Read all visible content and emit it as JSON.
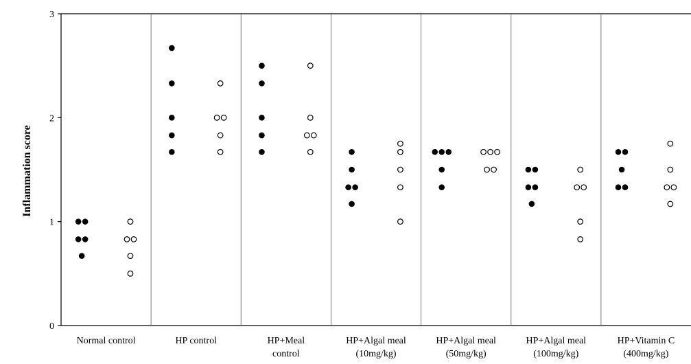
{
  "chart_data": {
    "type": "scatter",
    "ylabel": "Inflammation score",
    "xlabel": "",
    "ylim": [
      0,
      3
    ],
    "yticks": [
      "0",
      "1",
      "2",
      "3"
    ],
    "categories": [
      [
        "Normal control"
      ],
      [
        "HP control"
      ],
      [
        "HP+Meal",
        "control"
      ],
      [
        "HP+Algal meal",
        "(10mg/kg)"
      ],
      [
        "HP+Algal meal",
        "(50mg/kg)"
      ],
      [
        "HP+Algal meal",
        "(100mg/kg)"
      ],
      [
        "HP+Vitamin C",
        "(400mg/kg)"
      ]
    ],
    "series": [
      {
        "marker": "filled",
        "color": "#000000",
        "groups": [
          [
            1.0,
            1.0,
            0.83,
            0.83,
            0.67
          ],
          [
            2.67,
            2.33,
            2.0,
            1.83,
            1.67
          ],
          [
            2.5,
            2.33,
            2.0,
            1.83,
            1.67
          ],
          [
            1.67,
            1.5,
            1.33,
            1.33,
            1.17
          ],
          [
            1.67,
            1.67,
            1.67,
            1.5,
            1.33
          ],
          [
            1.5,
            1.5,
            1.33,
            1.33,
            1.17
          ],
          [
            1.67,
            1.67,
            1.5,
            1.33,
            1.33
          ]
        ]
      },
      {
        "marker": "open",
        "color": "#000000",
        "groups": [
          [
            1.0,
            0.83,
            0.83,
            0.67,
            0.5
          ],
          [
            2.33,
            2.0,
            2.0,
            1.83,
            1.67
          ],
          [
            2.5,
            2.0,
            1.83,
            1.83,
            1.67
          ],
          [
            1.75,
            1.67,
            1.5,
            1.33,
            1.0
          ],
          [
            1.67,
            1.67,
            1.67,
            1.5,
            1.5
          ],
          [
            1.5,
            1.33,
            1.33,
            1.0,
            0.83
          ],
          [
            1.75,
            1.5,
            1.33,
            1.33,
            1.17
          ]
        ]
      }
    ],
    "grid": false,
    "legend": "none"
  }
}
